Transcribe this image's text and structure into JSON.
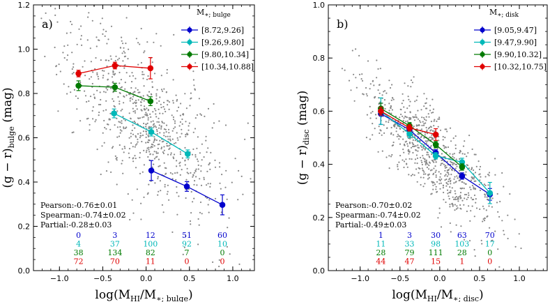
{
  "chart_data": [
    {
      "type": "scatter",
      "panel_label": "a)",
      "xlabel": "log(M_HI/M_*;bulge)",
      "ylabel": "(g − r)_bulge (mag)",
      "xlabel_parts": {
        "main": "log(M",
        "sub1": "HI",
        "mid": "/M",
        "sub2": "∗; bulge",
        "end": ")"
      },
      "ylabel_parts": {
        "main": "(g − r)",
        "sub": "bulge",
        "end": " (mag)"
      },
      "xlim": [
        -1.3,
        1.25
      ],
      "ylim": [
        0.0,
        1.2
      ],
      "xticks": [
        -1.0,
        -0.5,
        0.0,
        0.5,
        1.0
      ],
      "xtick_labels": [
        "−1.0",
        "−0.5",
        "0.0",
        "0.5",
        "1.0"
      ],
      "yticks": [
        0.0,
        0.2,
        0.4,
        0.6,
        0.8,
        1.0,
        1.2
      ],
      "ytick_labels": [
        "0.0",
        "0.2",
        "0.4",
        "0.6",
        "0.8",
        "1.0",
        "1.2"
      ],
      "legend_title": "M∗; bulge",
      "legend_title_parts": {
        "main": "M",
        "sub": "∗; bulge"
      },
      "legend_position": "top-right",
      "series": [
        {
          "name": "[8.72,9.26]",
          "color": "#0000cc",
          "x": [
            0.06,
            0.47,
            0.88
          ],
          "y": [
            0.452,
            0.38,
            0.297
          ],
          "err": [
            0.045,
            0.022,
            0.045
          ]
        },
        {
          "name": "[9.26,9.80]",
          "color": "#00b8b8",
          "x": [
            -0.37,
            0.06,
            0.48
          ],
          "y": [
            0.71,
            0.626,
            0.527
          ],
          "err": [
            0.02,
            0.018,
            0.018
          ]
        },
        {
          "name": "[9.80,10.34]",
          "color": "#007a00",
          "x": [
            -0.78,
            -0.36,
            0.05
          ],
          "y": [
            0.835,
            0.828,
            0.765
          ],
          "err": [
            0.022,
            0.018,
            0.02
          ]
        },
        {
          "name": "[10.34,10.88]",
          "color": "#e00000",
          "x": [
            -0.78,
            -0.36,
            0.05
          ],
          "y": [
            0.89,
            0.926,
            0.914
          ],
          "err": [
            0.015,
            0.015,
            0.048
          ]
        }
      ],
      "stats": [
        "Pearson:-0.76±0.01",
        "Spearman:-0.74±0.02",
        "Partial:-0.28±0.03"
      ],
      "count_x": [
        -0.78,
        -0.36,
        0.05,
        0.47,
        0.88
      ],
      "counts": [
        {
          "color": "#0000cc",
          "values": [
            "0",
            "3",
            "12",
            "51",
            "60"
          ]
        },
        {
          "color": "#00b8b8",
          "values": [
            "4",
            "37",
            "100",
            "92",
            "10"
          ]
        },
        {
          "color": "#007a00",
          "values": [
            "38",
            "134",
            "82",
            "7",
            "0"
          ]
        },
        {
          "color": "#e00000",
          "values": [
            "72",
            "70",
            "11",
            "0",
            "0"
          ]
        }
      ],
      "background_points": {
        "n": 820,
        "color": "#888888",
        "center_x": 0.0,
        "spread_x": 0.45,
        "slope": -0.3,
        "intercept": 0.68,
        "scatter_y": 0.16,
        "seed": 17
      }
    },
    {
      "type": "scatter",
      "panel_label": "b)",
      "xlabel": "log(M_HI/M_*;disc)",
      "ylabel": "(g − r)_disc (mag)",
      "xlabel_parts": {
        "main": "log(M",
        "sub1": "HI",
        "mid": "/M",
        "sub2": "∗; disc",
        "end": ")"
      },
      "ylabel_parts": {
        "main": "(g − r)",
        "sub": "disc",
        "end": " (mag)"
      },
      "xlim": [
        -1.4,
        1.35
      ],
      "ylim": [
        0.0,
        1.0
      ],
      "xticks": [
        -1.0,
        -0.5,
        0.0,
        0.5,
        1.0
      ],
      "xtick_labels": [
        "−1.0",
        "−0.5",
        "0.0",
        "0.5",
        "1.0"
      ],
      "yticks": [
        0.0,
        0.2,
        0.4,
        0.6,
        0.8,
        1.0
      ],
      "ytick_labels": [
        "0.0",
        "0.2",
        "0.4",
        "0.6",
        "0.8",
        "1.0"
      ],
      "legend_title": "M∗; disk",
      "legend_title_parts": {
        "main": "M",
        "sub": "∗; disk"
      },
      "legend_position": "top-right",
      "series": [
        {
          "name": "[9.05,9.47]",
          "color": "#0000cc",
          "x": [
            -0.74,
            -0.38,
            -0.05,
            0.28,
            0.63
          ],
          "y": [
            0.59,
            0.53,
            0.443,
            0.356,
            0.287
          ],
          "err": [
            0.04,
            0.015,
            0.012,
            0.012,
            0.022
          ]
        },
        {
          "name": "[9.47,9.90]",
          "color": "#00b8b8",
          "x": [
            -0.74,
            -0.38,
            -0.05,
            0.28,
            0.63
          ],
          "y": [
            0.6,
            0.515,
            0.432,
            0.408,
            0.292
          ],
          "err": [
            0.05,
            0.015,
            0.012,
            0.015,
            0.04
          ]
        },
        {
          "name": "[9.90,10.32]",
          "color": "#007a00",
          "x": [
            -0.74,
            -0.38,
            -0.05,
            0.28
          ],
          "y": [
            0.61,
            0.545,
            0.474,
            0.39
          ],
          "err": [
            0.02,
            0.012,
            0.012,
            0.012
          ]
        },
        {
          "name": "[10.32,10.75]",
          "color": "#e00000",
          "x": [
            -0.74,
            -0.38,
            -0.05
          ],
          "y": [
            0.6,
            0.537,
            0.512
          ],
          "err": [
            0.015,
            0.012,
            0.022
          ]
        }
      ],
      "stats": [
        "Pearson:-0.70±0.02",
        "Spearman:-0.74±0.02",
        "Partial:-0.49±0.03"
      ],
      "count_x": [
        -0.74,
        -0.38,
        -0.05,
        0.28,
        0.63
      ],
      "counts": [
        {
          "color": "#0000cc",
          "values": [
            "1",
            "3",
            "30",
            "63",
            "70"
          ]
        },
        {
          "color": "#00b8b8",
          "values": [
            "11",
            "33",
            "98",
            "103",
            "17"
          ]
        },
        {
          "color": "#007a00",
          "values": [
            "28",
            "79",
            "111",
            "28",
            "0"
          ]
        },
        {
          "color": "#e00000",
          "values": [
            "44",
            "47",
            "15",
            "1",
            "0"
          ]
        }
      ],
      "background_points": {
        "n": 820,
        "color": "#888888",
        "center_x": -0.1,
        "spread_x": 0.42,
        "slope": -0.27,
        "intercept": 0.44,
        "scatter_y": 0.085,
        "seed": 41
      }
    }
  ]
}
